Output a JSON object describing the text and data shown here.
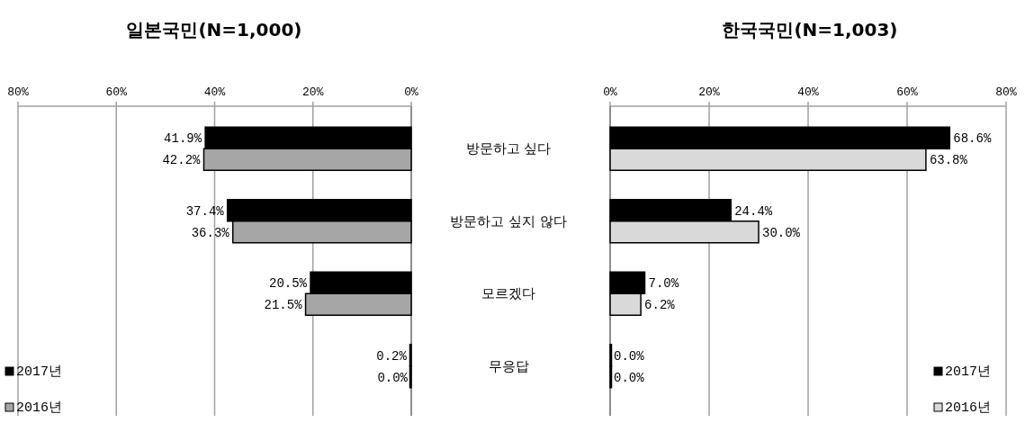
{
  "chart_data": [
    {
      "type": "bar",
      "orientation": "horizontal",
      "title": "일본국민(N=1,000)",
      "categories": [
        "방문하고 싶다",
        "방문하고 싶지 않다",
        "모르겠다",
        "무응답"
      ],
      "series": [
        {
          "name": "2017년",
          "color": "#000000",
          "values": [
            41.9,
            37.4,
            20.5,
            0.2
          ],
          "value_labels": [
            "41.9%",
            "37.4%",
            "20.5%",
            "0.2%"
          ]
        },
        {
          "name": "2016년",
          "color": "#a6a6a6",
          "values": [
            42.2,
            36.3,
            21.5,
            0.0
          ],
          "value_labels": [
            "42.2%",
            "36.3%",
            "21.5%",
            "0.0%"
          ]
        }
      ],
      "xlim": [
        80,
        0
      ],
      "xticks": [
        {
          "value": 80,
          "label": "80%"
        },
        {
          "value": 60,
          "label": "60%"
        },
        {
          "value": 40,
          "label": "40%"
        },
        {
          "value": 20,
          "label": "20%"
        },
        {
          "value": 0,
          "label": "0%"
        }
      ],
      "grid": "x",
      "legend": "bottom left"
    },
    {
      "type": "bar",
      "orientation": "horizontal",
      "title": "한국국민(N=1,003)",
      "categories": [
        null,
        null,
        null,
        null
      ],
      "series": [
        {
          "name": "2017년",
          "color": "#000000",
          "values": [
            68.6,
            24.4,
            7.0,
            0.0
          ],
          "value_labels": [
            "68.6%",
            "24.4%",
            "7.0%",
            "0.0%"
          ]
        },
        {
          "name": "2016년",
          "color": "#d9d9d9",
          "values": [
            63.8,
            30.0,
            6.2,
            0.0
          ],
          "value_labels": [
            "63.8%",
            "30.0%",
            "6.2%",
            "0.0%"
          ]
        }
      ],
      "xlim": [
        0,
        80
      ],
      "xticks": [
        {
          "value": 0,
          "label": "0%"
        },
        {
          "value": 20,
          "label": "20%"
        },
        {
          "value": 40,
          "label": "40%"
        },
        {
          "value": 60,
          "label": "60%"
        },
        {
          "value": 80,
          "label": "80%"
        }
      ],
      "grid": "x",
      "legend": "bottom right"
    }
  ]
}
